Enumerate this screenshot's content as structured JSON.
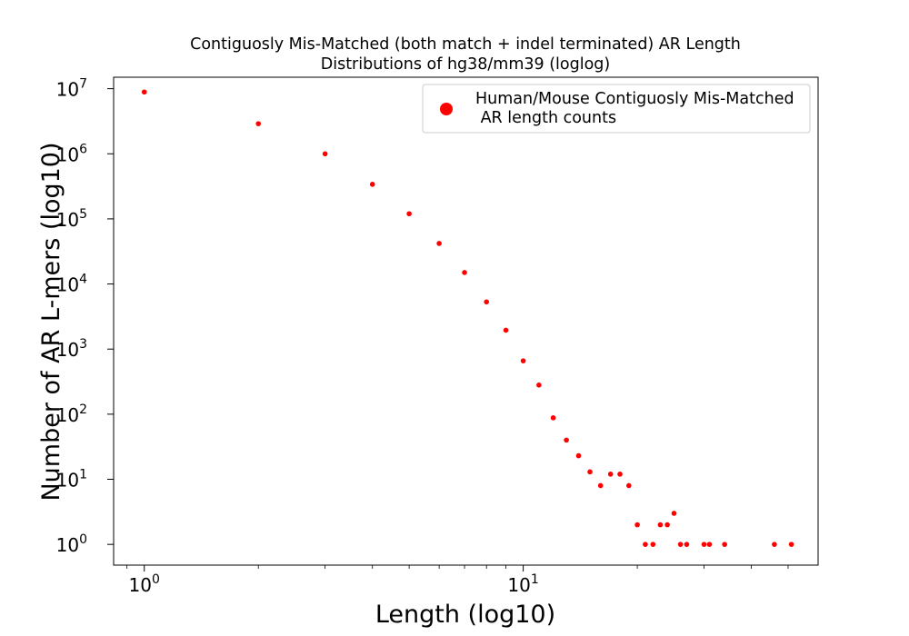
{
  "chart_data": {
    "type": "scatter",
    "title_lines": [
      "Contiguosly Mis-Matched (both match + indel terminated) AR Length",
      "Distributions of hg38/mm39 (loglog)"
    ],
    "xlabel": "Length (log10)",
    "ylabel": "Number of AR L-mers (log10)",
    "x_scale": "log",
    "y_scale": "log",
    "xlim": [
      0.83,
      60
    ],
    "ylim": [
      0.48,
      15000000
    ],
    "grid": false,
    "legend_position": "top-right",
    "x_ticks": [
      {
        "base": "10",
        "exp": "0",
        "value": 1
      },
      {
        "base": "10",
        "exp": "1",
        "value": 10
      }
    ],
    "y_ticks": [
      {
        "base": "10",
        "exp": "0",
        "value": 1
      },
      {
        "base": "10",
        "exp": "1",
        "value": 10
      },
      {
        "base": "10",
        "exp": "2",
        "value": 100
      },
      {
        "base": "10",
        "exp": "3",
        "value": 1000
      },
      {
        "base": "10",
        "exp": "4",
        "value": 10000
      },
      {
        "base": "10",
        "exp": "5",
        "value": 100000
      },
      {
        "base": "10",
        "exp": "6",
        "value": 1000000
      },
      {
        "base": "10",
        "exp": "7",
        "value": 10000000
      }
    ],
    "series": [
      {
        "name_lines": [
          "Human/Mouse Contiguosly Mis-Matched",
          " AR length counts"
        ],
        "color": "#ff0000",
        "x": [
          1,
          2,
          3,
          4,
          5,
          6,
          7,
          8,
          9,
          10,
          11,
          12,
          13,
          14,
          15,
          16,
          17,
          18,
          19,
          20,
          21,
          22,
          23,
          24,
          25,
          26,
          27,
          30,
          31,
          34,
          46,
          51
        ],
        "y": [
          8900000,
          2900000,
          1000000,
          340000,
          120000,
          42000,
          15000,
          5300,
          1950,
          660,
          280,
          88,
          40,
          23,
          13,
          8,
          12,
          12,
          8,
          2,
          1,
          1,
          2,
          2,
          3,
          1,
          1,
          1,
          1,
          1,
          1,
          1
        ]
      }
    ]
  }
}
